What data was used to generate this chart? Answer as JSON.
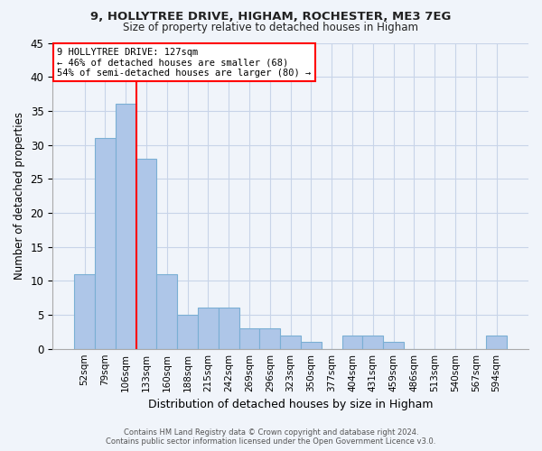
{
  "title1": "9, HOLLYTREE DRIVE, HIGHAM, ROCHESTER, ME3 7EG",
  "title2": "Size of property relative to detached houses in Higham",
  "xlabel": "Distribution of detached houses by size in Higham",
  "ylabel": "Number of detached properties",
  "footer1": "Contains HM Land Registry data © Crown copyright and database right 2024.",
  "footer2": "Contains public sector information licensed under the Open Government Licence v3.0.",
  "annotation_line1": "9 HOLLYTREE DRIVE: 127sqm",
  "annotation_line2": "← 46% of detached houses are smaller (68)",
  "annotation_line3": "54% of semi-detached houses are larger (80) →",
  "bin_labels": [
    "52sqm",
    "79sqm",
    "106sqm",
    "133sqm",
    "160sqm",
    "188sqm",
    "215sqm",
    "242sqm",
    "269sqm",
    "296sqm",
    "323sqm",
    "350sqm",
    "377sqm",
    "404sqm",
    "431sqm",
    "459sqm",
    "486sqm",
    "513sqm",
    "540sqm",
    "567sqm",
    "594sqm"
  ],
  "bin_values": [
    11,
    31,
    36,
    28,
    11,
    5,
    6,
    6,
    3,
    3,
    2,
    1,
    0,
    2,
    2,
    1,
    0,
    0,
    0,
    0,
    2
  ],
  "bar_color": "#aec6e8",
  "bar_edge_color": "#7aafd4",
  "red_line_index": 3,
  "ylim": [
    0,
    45
  ],
  "yticks": [
    0,
    5,
    10,
    15,
    20,
    25,
    30,
    35,
    40,
    45
  ],
  "background_color": "#f0f4fa",
  "grid_color": "#c8d4e8"
}
